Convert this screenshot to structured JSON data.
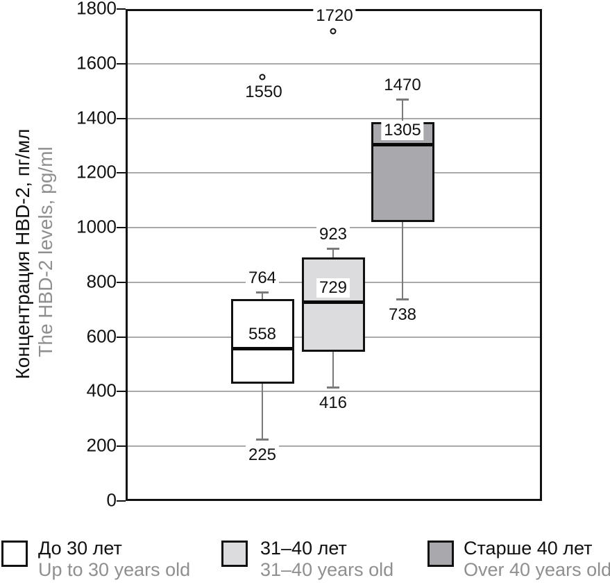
{
  "chart_data": {
    "type": "boxplot",
    "title": "",
    "ylabel_ru": "Концентрация HBD-2, пг/мл",
    "ylabel_en": "The HBD-2 levels, pg/ml",
    "ylim": [
      0,
      1800
    ],
    "ytick_step": 200,
    "grid": true,
    "legend_position": "bottom",
    "colors": {
      "grid": "#a9a9a9",
      "axis": "#111111",
      "whisker": "#7a7a7a",
      "secondary_text": "#8f8f8f",
      "fill_group1": "#ffffff",
      "fill_group2": "#dcdcde",
      "fill_group3": "#a9a9ad"
    },
    "groups": [
      {
        "label_ru": "До 30 лет",
        "label_en": "Up to 30 years old",
        "fill": "#ffffff",
        "whisker_low": 225,
        "q1": 430,
        "median": 558,
        "q3": 738,
        "whisker_high": 764,
        "outliers": [
          1550
        ],
        "outlier_label_position": "below"
      },
      {
        "label_ru": "31–40 лет",
        "label_en": "31–40 years old",
        "fill": "#dcdcde",
        "whisker_low": 416,
        "q1": 545,
        "median": 729,
        "q3": 890,
        "whisker_high": 923,
        "outliers": [
          1720
        ],
        "outlier_label_position": "above"
      },
      {
        "label_ru": "Старше 40 лет",
        "label_en": "Over 40 years old",
        "fill": "#a9a9ad",
        "whisker_low": 738,
        "q1": 1020,
        "median": 1305,
        "q3": 1385,
        "whisker_high": 1470,
        "outliers": [],
        "outlier_label_position": "below"
      }
    ]
  }
}
